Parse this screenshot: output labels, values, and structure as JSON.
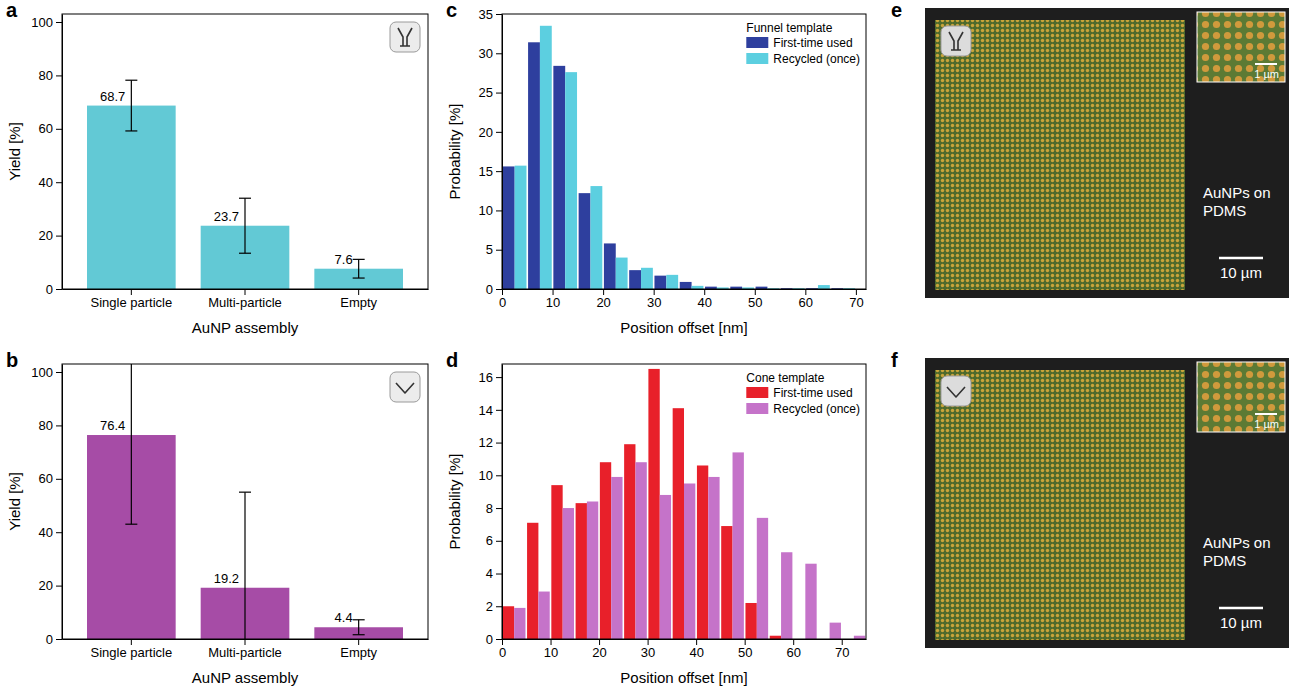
{
  "chart_data": [
    {
      "type": "bar",
      "panel": "a",
      "categories": [
        "Single particle",
        "Multi-particle",
        "Empty"
      ],
      "values": [
        68.7,
        23.7,
        7.6
      ],
      "errors": [
        9.5,
        10.3,
        3.5
      ],
      "color": "#62c9d5",
      "data_labels": true,
      "xlabel": "AuNP assembly",
      "ylabel": "Yield [%]",
      "ylim": [
        0,
        103
      ],
      "yticks": [
        0,
        20,
        40,
        60,
        80,
        100
      ]
    },
    {
      "type": "bar",
      "panel": "b",
      "categories": [
        "Single particle",
        "Multi-particle",
        "Empty"
      ],
      "values": [
        76.4,
        19.2,
        4.4
      ],
      "errors": [
        33.4,
        35.8,
        2.8
      ],
      "color": "#a64ca6",
      "data_labels": true,
      "xlabel": "AuNP assembly",
      "ylabel": "Yield [%]",
      "ylim": [
        0,
        103
      ],
      "yticks": [
        0,
        20,
        40,
        60,
        80,
        100
      ]
    },
    {
      "type": "histogram",
      "panel": "c",
      "bins": [
        0,
        5,
        10,
        15,
        20,
        25,
        30,
        35,
        40,
        45,
        50,
        55,
        60,
        65,
        70
      ],
      "series": [
        {
          "name": "First-time used",
          "color": "#2e3f9e",
          "values": [
            15.6,
            31.4,
            28.4,
            12.2,
            5.8,
            2.4,
            1.7,
            0.9,
            0.3,
            0.3,
            0.3,
            0.1,
            0.1,
            0.1
          ]
        },
        {
          "name": "Recycled (once)",
          "color": "#5ccfe0",
          "values": [
            15.7,
            33.5,
            27.6,
            13.1,
            4.0,
            2.7,
            1.8,
            0.4,
            0.2,
            0.2,
            0.1,
            0.1,
            0.5,
            0.1
          ]
        }
      ],
      "legend_title": "Funnel template",
      "legend": "upper right",
      "xlabel": "Position offset [nm]",
      "ylabel": "Probability [%]",
      "xlim": [
        0,
        72
      ],
      "xticks": [
        0,
        10,
        20,
        30,
        40,
        50,
        60,
        70
      ],
      "ylim": [
        0,
        35
      ],
      "yticks": [
        0,
        5,
        10,
        15,
        20,
        25,
        30,
        35
      ]
    },
    {
      "type": "histogram",
      "panel": "d",
      "bins": [
        0,
        5,
        10,
        15,
        20,
        25,
        30,
        35,
        40,
        45,
        50,
        55,
        60,
        65,
        70,
        75
      ],
      "series": [
        {
          "name": "First-time used",
          "color": "#e8202a",
          "values": [
            2.0,
            7.1,
            9.4,
            8.3,
            10.8,
            11.9,
            16.5,
            14.1,
            10.6,
            6.9,
            2.2,
            0.2,
            0,
            0,
            0
          ]
        },
        {
          "name": "Recycled (once)",
          "color": "#c573c9",
          "values": [
            1.9,
            2.9,
            8.0,
            8.4,
            9.9,
            10.8,
            8.8,
            9.5,
            9.9,
            11.4,
            7.4,
            5.3,
            4.6,
            1.0,
            0.2
          ]
        }
      ],
      "legend_title": "Cone template",
      "legend": "upper right",
      "xlabel": "Position offset [nm]",
      "ylabel": "Probability [%]",
      "xlim": [
        0,
        75
      ],
      "xticks": [
        0,
        10,
        20,
        30,
        40,
        50,
        60,
        70
      ],
      "ylim": [
        0,
        16.8
      ],
      "yticks": [
        0,
        2,
        4,
        6,
        8,
        10,
        12,
        14,
        16
      ]
    },
    {
      "type": "image",
      "panel": "e",
      "annotation": "AuNPs on PDMS",
      "scale_bar": "10 µm",
      "inset_scale_bar": "1 µm"
    },
    {
      "type": "image",
      "panel": "f",
      "annotation": "AuNPs on PDMS",
      "scale_bar": "10 µm",
      "inset_scale_bar": "1 µm"
    }
  ]
}
